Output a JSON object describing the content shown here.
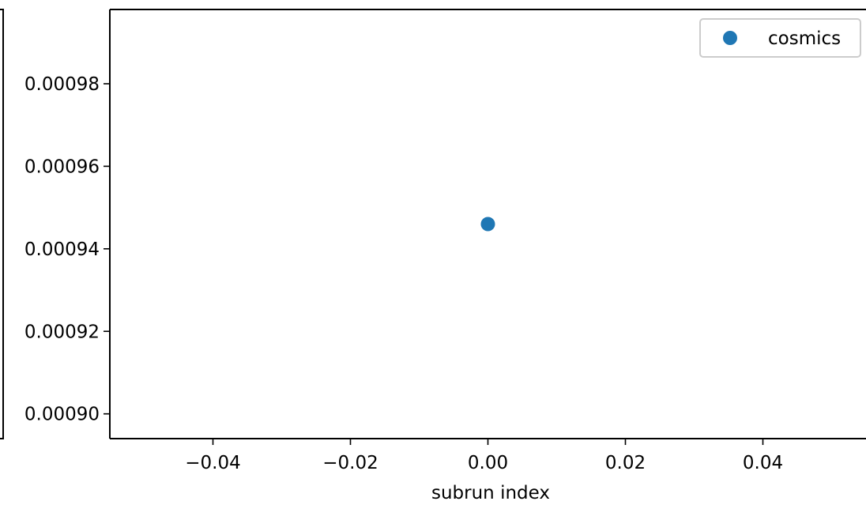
{
  "chart_data": {
    "type": "scatter",
    "title": "",
    "xlabel": "subrun index",
    "ylabel": "",
    "xlim": [
      -0.055,
      0.055
    ],
    "ylim": [
      0.000894,
      0.000998
    ],
    "x_ticks": [
      -0.04,
      -0.02,
      0.0,
      0.02,
      0.04
    ],
    "x_tick_labels": [
      "−0.04",
      "−0.02",
      "0.00",
      "0.02",
      "0.04"
    ],
    "y_ticks": [
      0.0009,
      0.00092,
      0.00094,
      0.00096,
      0.00098
    ],
    "y_tick_labels": [
      "0.00090",
      "0.00092",
      "0.00094",
      "0.00096",
      "0.00098"
    ],
    "grid": false,
    "legend_position": "top-right",
    "series": [
      {
        "name": "cosmics",
        "color": "#1f77b4",
        "marker": "circle",
        "points": [
          {
            "x": 0.0,
            "y": 0.000946
          }
        ]
      }
    ]
  }
}
